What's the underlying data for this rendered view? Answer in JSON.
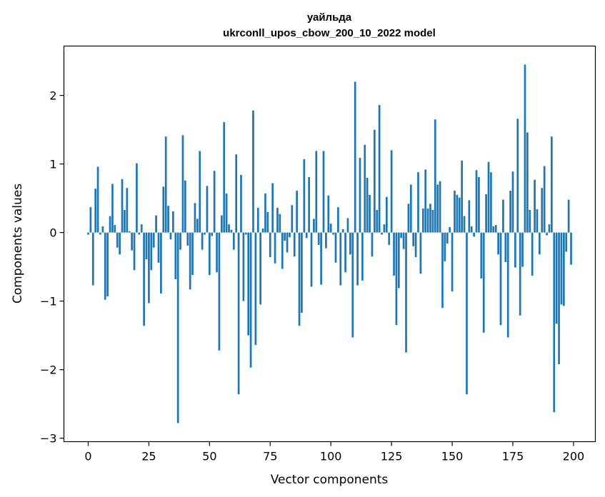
{
  "chart_data": {
    "type": "bar",
    "title_line1": "уайльда",
    "title_line2": "ukrconll_upos_cbow_200_10_2022 model",
    "xlabel": "Vector components",
    "ylabel": "Components values",
    "xlim": [
      -10,
      209
    ],
    "ylim": [
      -3.05,
      2.72
    ],
    "xticks": [
      0,
      25,
      50,
      75,
      100,
      125,
      150,
      175,
      200
    ],
    "xtick_labels": [
      "0",
      "25",
      "50",
      "75",
      "100",
      "125",
      "150",
      "175",
      "200"
    ],
    "yticks": [
      -3,
      -2,
      -1,
      0,
      1,
      2
    ],
    "ytick_labels": [
      "−3",
      "−2",
      "−1",
      "0",
      "1",
      "2"
    ],
    "bar_color": "#1f77b4",
    "grid": false,
    "values": [
      -0.03,
      0.37,
      -0.77,
      0.64,
      0.96,
      -0.03,
      0.09,
      -0.98,
      -0.93,
      0.24,
      0.71,
      0.11,
      -0.22,
      -0.32,
      0.78,
      0.33,
      0.65,
      0.02,
      -0.26,
      -0.55,
      1.01,
      -0.03,
      0.12,
      -1.36,
      -0.39,
      -1.03,
      -0.55,
      -0.22,
      0.25,
      -0.44,
      -0.89,
      0.67,
      1.4,
      0.39,
      -0.1,
      0.31,
      -0.68,
      -2.78,
      -0.25,
      1.42,
      0.76,
      -0.19,
      -0.83,
      -0.62,
      0.43,
      0.2,
      1.19,
      -0.25,
      -0.03,
      0.68,
      -0.62,
      -0.05,
      0.9,
      -0.58,
      -1.72,
      0.25,
      1.61,
      0.57,
      0.12,
      0.04,
      -0.25,
      1.14,
      -2.36,
      0.84,
      -1.0,
      -0.03,
      -1.5,
      -1.97,
      1.78,
      -1.64,
      0.36,
      -1.05,
      0.06,
      0.57,
      0.3,
      -0.36,
      0.72,
      -0.45,
      0.36,
      0.27,
      -0.53,
      -0.12,
      -0.29,
      -0.07,
      0.4,
      -0.35,
      0.61,
      -1.36,
      -1.17,
      1.07,
      -0.08,
      0.81,
      -0.79,
      0.2,
      1.19,
      -0.18,
      -0.76,
      1.19,
      -0.23,
      0.54,
      0.13,
      -0.03,
      -0.44,
      0.37,
      -0.77,
      0.05,
      -0.58,
      0.21,
      -0.32,
      -1.53,
      2.2,
      -0.77,
      1.09,
      -0.7,
      1.28,
      0.8,
      0.55,
      -0.35,
      1.5,
      0.33,
      1.86,
      -0.03,
      0.12,
      0.52,
      -0.18,
      1.2,
      -0.63,
      -1.35,
      -0.81,
      -0.08,
      -0.24,
      -1.75,
      0.42,
      0.7,
      -0.2,
      -0.36,
      0.88,
      -0.6,
      0.35,
      0.92,
      0.35,
      0.42,
      0.33,
      1.65,
      0.7,
      0.75,
      -1.1,
      -0.42,
      -0.16,
      0.08,
      -0.86,
      0.61,
      0.55,
      0.51,
      1.05,
      0.24,
      -2.36,
      0.47,
      0.09,
      -0.06,
      0.91,
      0.81,
      -0.67,
      -1.46,
      0.56,
      1.03,
      0.88,
      0.09,
      0.11,
      -0.32,
      -1.35,
      0.48,
      -0.43,
      -1.53,
      0.61,
      0.89,
      -0.51,
      1.66,
      -1.21,
      -0.5,
      2.45,
      1.46,
      0.33,
      -0.63,
      0.77,
      0.34,
      -0.32,
      0.65,
      0.97,
      -0.04,
      0.12,
      1.4,
      -2.62,
      -1.33,
      -1.92,
      -1.05,
      -1.07,
      -0.28,
      0.48,
      -0.47
    ]
  }
}
